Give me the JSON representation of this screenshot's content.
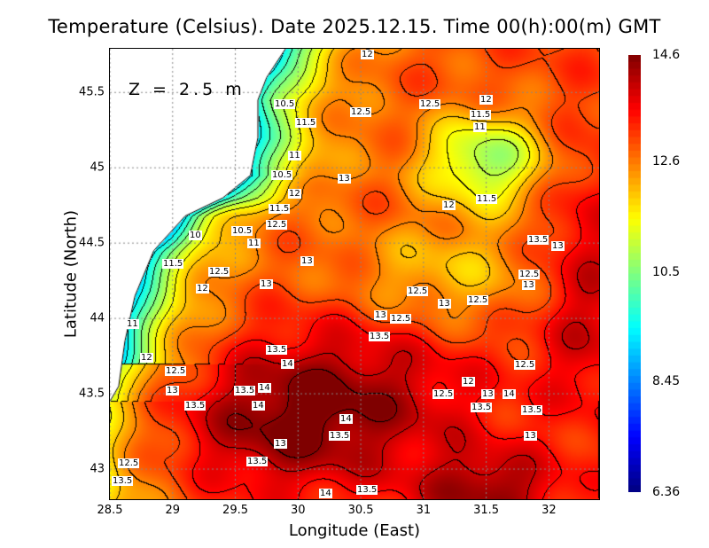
{
  "chart_data": {
    "type": "heatmap",
    "title": "Temperature (Celsius). Date 2025.12.15. Time 00(h):00(m)  GMT",
    "xlabel": "Longitude (East)",
    "ylabel": "Latitude (North)",
    "annotation": "Z = 2.5 m",
    "xlim": [
      28.5,
      32.4
    ],
    "ylim": [
      42.8,
      45.79
    ],
    "xticks": [
      "28.5",
      "29",
      "29.5",
      "30",
      "30.5",
      "31",
      "31.5",
      "32"
    ],
    "xtick_values": [
      28.5,
      29,
      29.5,
      30,
      30.5,
      31,
      31.5,
      32
    ],
    "yticks": [
      "45.5",
      "45",
      "44.5",
      "44",
      "43.5",
      "43"
    ],
    "ytick_values": [
      45.5,
      45,
      44.5,
      44,
      43.5,
      43
    ],
    "grid": true,
    "colorbar": {
      "min": 6.36,
      "max": 14.6,
      "ticks": [
        "14.6",
        "12.6",
        "10.5",
        "8.45",
        "6.36"
      ],
      "tick_values": [
        14.6,
        12.6,
        10.5,
        8.45,
        6.36
      ]
    },
    "contour_interval": 0.5,
    "contour_labels": [
      {
        "text": "12",
        "lon": 30.55,
        "lat": 45.77
      },
      {
        "text": "12",
        "lon": 31.5,
        "lat": 45.45
      },
      {
        "text": "10.5",
        "lon": 29.89,
        "lat": 45.42
      },
      {
        "text": "11.5",
        "lon": 30.06,
        "lat": 45.37
      },
      {
        "text": "12.5",
        "lon": 30.5,
        "lat": 45.37
      },
      {
        "text": "12.5",
        "lon": 31.05,
        "lat": 45.42
      },
      {
        "text": "11.5",
        "lon": 31.45,
        "lat": 45.35
      },
      {
        "text": "11",
        "lon": 31.45,
        "lat": 45.27
      },
      {
        "text": "11",
        "lon": 29.97,
        "lat": 45.08
      },
      {
        "text": "10.5",
        "lon": 29.87,
        "lat": 44.95
      },
      {
        "text": "12",
        "lon": 29.97,
        "lat": 44.9
      },
      {
        "text": "13",
        "lon": 30.37,
        "lat": 44.93
      },
      {
        "text": "11.5",
        "lon": 29.85,
        "lat": 44.73
      },
      {
        "text": "12.5",
        "lon": 29.83,
        "lat": 44.69
      },
      {
        "text": "12",
        "lon": 31.2,
        "lat": 44.75
      },
      {
        "text": "11.5",
        "lon": 31.5,
        "lat": 44.79
      },
      {
        "text": "10",
        "lon": 29.18,
        "lat": 44.55
      },
      {
        "text": "10.5",
        "lon": 29.55,
        "lat": 44.58
      },
      {
        "text": "11",
        "lon": 29.65,
        "lat": 44.57
      },
      {
        "text": "11.5",
        "lon": 29.0,
        "lat": 44.36
      },
      {
        "text": "13",
        "lon": 30.07,
        "lat": 44.38
      },
      {
        "text": "13.5",
        "lon": 31.91,
        "lat": 44.52
      },
      {
        "text": "13",
        "lon": 32.07,
        "lat": 44.48
      },
      {
        "text": "12.5",
        "lon": 31.84,
        "lat": 44.29
      },
      {
        "text": "13",
        "lon": 31.84,
        "lat": 44.22
      },
      {
        "text": "12",
        "lon": 29.24,
        "lat": 44.2
      },
      {
        "text": "12.5",
        "lon": 29.37,
        "lat": 44.24
      },
      {
        "text": "13",
        "lon": 29.75,
        "lat": 44.23
      },
      {
        "text": "12.5",
        "lon": 30.95,
        "lat": 44.18
      },
      {
        "text": "13",
        "lon": 31.17,
        "lat": 44.1
      },
      {
        "text": "12.5",
        "lon": 31.43,
        "lat": 44.12
      },
      {
        "text": "11",
        "lon": 28.68,
        "lat": 43.96
      },
      {
        "text": "13",
        "lon": 30.66,
        "lat": 44.02
      },
      {
        "text": "12.5",
        "lon": 30.82,
        "lat": 44.0
      },
      {
        "text": "13.5",
        "lon": 30.65,
        "lat": 43.95
      },
      {
        "text": "12",
        "lon": 28.79,
        "lat": 43.74
      },
      {
        "text": "13.5",
        "lon": 29.83,
        "lat": 43.79
      },
      {
        "text": "14",
        "lon": 29.92,
        "lat": 43.7
      },
      {
        "text": "12.5",
        "lon": 29.02,
        "lat": 43.65
      },
      {
        "text": "13",
        "lon": 29.0,
        "lat": 43.59
      },
      {
        "text": "12.5",
        "lon": 31.81,
        "lat": 43.69
      },
      {
        "text": "12",
        "lon": 31.36,
        "lat": 43.58
      },
      {
        "text": "14",
        "lon": 29.73,
        "lat": 43.54
      },
      {
        "text": "14",
        "lon": 29.68,
        "lat": 43.49
      },
      {
        "text": "13.5",
        "lon": 29.67,
        "lat": 43.45
      },
      {
        "text": "12.5",
        "lon": 31.16,
        "lat": 43.5
      },
      {
        "text": "13",
        "lon": 31.51,
        "lat": 43.5
      },
      {
        "text": "14",
        "lon": 31.68,
        "lat": 43.5
      },
      {
        "text": "13.5",
        "lon": 29.18,
        "lat": 43.42
      },
      {
        "text": "13.5",
        "lon": 31.46,
        "lat": 43.41
      },
      {
        "text": "13.5",
        "lon": 31.86,
        "lat": 43.39
      },
      {
        "text": "14",
        "lon": 30.38,
        "lat": 43.33
      },
      {
        "text": "13.5",
        "lon": 30.33,
        "lat": 43.29
      },
      {
        "text": "13",
        "lon": 31.85,
        "lat": 43.22
      },
      {
        "text": "13",
        "lon": 29.86,
        "lat": 43.17
      },
      {
        "text": "12.5",
        "lon": 28.65,
        "lat": 43.04
      },
      {
        "text": "13.5",
        "lon": 28.6,
        "lat": 42.99
      },
      {
        "text": "13.5",
        "lon": 29.67,
        "lat": 43.05
      },
      {
        "text": "13.5",
        "lon": 30.55,
        "lat": 42.86
      },
      {
        "text": "14",
        "lon": 30.22,
        "lat": 42.84
      }
    ]
  },
  "colors": {
    "land": "#ffffff",
    "grid": "#888888",
    "contour": "#000000"
  }
}
